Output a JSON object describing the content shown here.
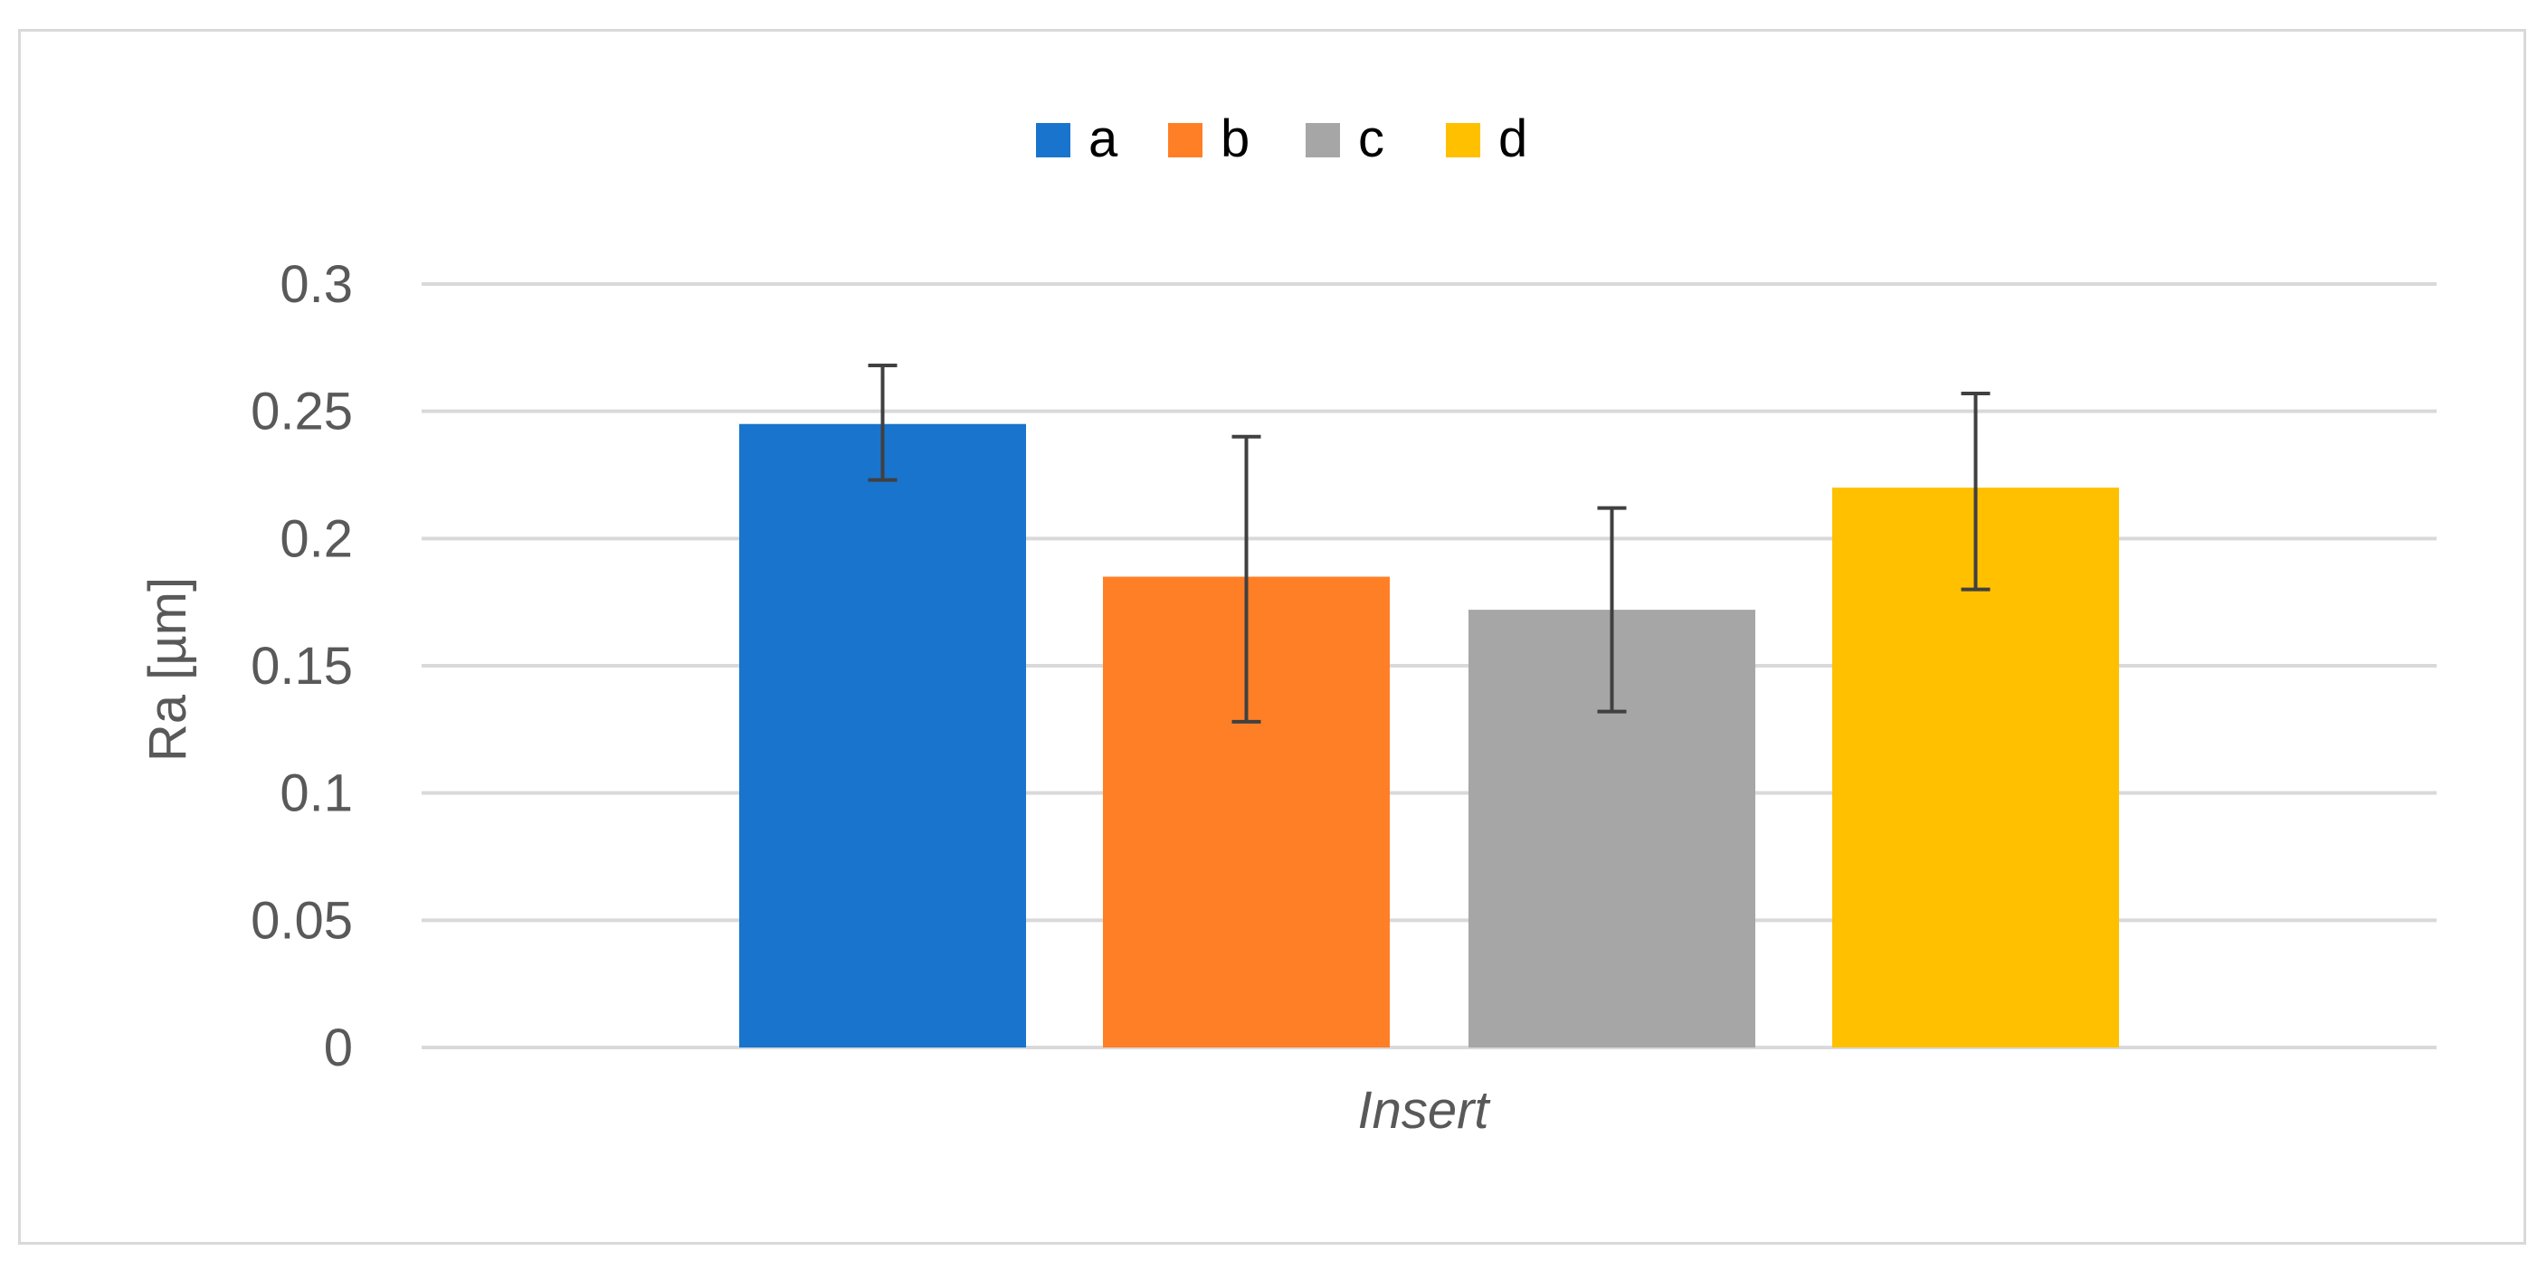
{
  "chart_data": {
    "type": "bar",
    "categories": [
      "Insert"
    ],
    "series": [
      {
        "name": "a",
        "values": [
          0.245
        ],
        "error_low": [
          0.223
        ],
        "error_high": [
          0.268
        ],
        "color": "#1874CD"
      },
      {
        "name": "b",
        "values": [
          0.185
        ],
        "error_low": [
          0.128
        ],
        "error_high": [
          0.24
        ],
        "color": "#FF7F27"
      },
      {
        "name": "c",
        "values": [
          0.172
        ],
        "error_low": [
          0.132
        ],
        "error_high": [
          0.212
        ],
        "color": "#A6A6A6"
      },
      {
        "name": "d",
        "values": [
          0.22
        ],
        "error_low": [
          0.18
        ],
        "error_high": [
          0.257
        ],
        "color": "#FFC000"
      }
    ],
    "ylabel": "Ra [µm]",
    "xlabel": "",
    "ylim": [
      0,
      0.3
    ],
    "yticks": [
      "0",
      "0.05",
      "0.1",
      "0.15",
      "0.2",
      "0.25",
      "0.3"
    ],
    "grid": true,
    "legend_position": "top-center",
    "colors": {
      "grid": "#D9D9D9",
      "text": "#595959",
      "error_bar": "#404040"
    }
  }
}
